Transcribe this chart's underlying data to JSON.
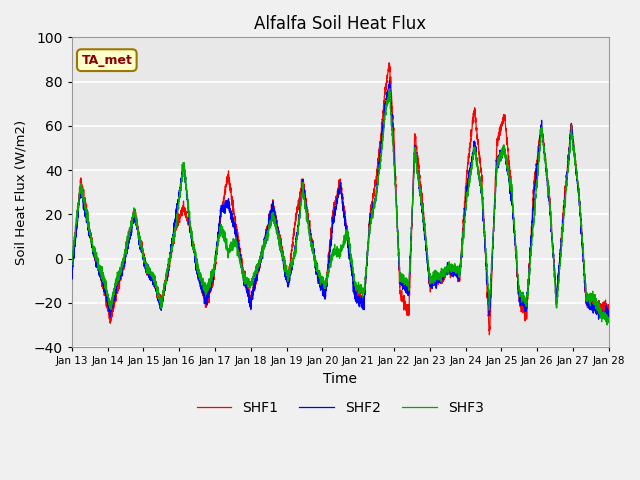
{
  "title": "Alfalfa Soil Heat Flux",
  "xlabel": "Time",
  "ylabel": "Soil Heat Flux (W/m2)",
  "ylim": [
    -40,
    100
  ],
  "xlim": [
    0,
    360
  ],
  "background_color": "#f0f0f0",
  "plot_bg_color": "#e8e8e8",
  "grid_color": "white",
  "annotation_text": "TA_met",
  "annotation_color": "#8B0000",
  "annotation_bg": "#ffffcc",
  "legend_labels": [
    "SHF1",
    "SHF2",
    "SHF3"
  ],
  "legend_colors": [
    "#ff0000",
    "#0000ff",
    "#00aa00"
  ],
  "tick_labels": [
    "Jan 13",
    "Jan 14",
    "Jan 15",
    "Jan 16",
    "Jan 17",
    "Jan 18",
    "Jan 19",
    "Jan 20",
    "Jan 21",
    "Jan 22",
    "Jan 23",
    "Jan 24",
    "Jan 25",
    "Jan 26",
    "Jan 27",
    "Jan 28"
  ],
  "tick_positions": [
    0,
    24,
    48,
    72,
    96,
    120,
    144,
    168,
    192,
    216,
    240,
    264,
    288,
    312,
    336,
    360
  ],
  "shf1_t": [
    0,
    6,
    10,
    14,
    18,
    22,
    26,
    30,
    34,
    38,
    42,
    46,
    50,
    55,
    60,
    65,
    70,
    75,
    80,
    85,
    90,
    95,
    100,
    105,
    110,
    115,
    120,
    125,
    130,
    135,
    140,
    145,
    150,
    155,
    160,
    165,
    170,
    175,
    180,
    185,
    190,
    196,
    200,
    204,
    208,
    210,
    213,
    216,
    220,
    226,
    230,
    236,
    240,
    244,
    248,
    252,
    256,
    260,
    265,
    270,
    275,
    280,
    285,
    290,
    295,
    300,
    305,
    310,
    315,
    320,
    325,
    330,
    335,
    340,
    345,
    350,
    355,
    360
  ],
  "shf1_v": [
    -5,
    35,
    22,
    5,
    -5,
    -15,
    -28,
    -15,
    -5,
    10,
    22,
    8,
    -5,
    -10,
    -20,
    -5,
    15,
    23,
    12,
    -8,
    -20,
    -10,
    20,
    38,
    15,
    -5,
    -20,
    -5,
    10,
    24,
    8,
    -10,
    18,
    35,
    12,
    -8,
    -15,
    20,
    35,
    10,
    -15,
    -20,
    20,
    35,
    60,
    75,
    88,
    55,
    -15,
    -25,
    57,
    20,
    -12,
    -8,
    -10,
    -5,
    -5,
    -8,
    40,
    68,
    35,
    -35,
    52,
    65,
    30,
    -20,
    -25,
    35,
    60,
    30,
    -20,
    25,
    60,
    30,
    -20,
    -20,
    -22,
    -22
  ],
  "shf2_t": [
    0,
    6,
    10,
    14,
    18,
    22,
    26,
    30,
    34,
    38,
    42,
    46,
    50,
    55,
    60,
    65,
    70,
    75,
    80,
    85,
    90,
    95,
    100,
    105,
    110,
    115,
    120,
    125,
    130,
    135,
    140,
    145,
    150,
    155,
    160,
    165,
    170,
    175,
    180,
    185,
    190,
    196,
    200,
    204,
    208,
    210,
    213,
    216,
    220,
    226,
    230,
    236,
    240,
    244,
    248,
    252,
    256,
    260,
    265,
    270,
    275,
    280,
    285,
    290,
    295,
    300,
    305,
    310,
    315,
    320,
    325,
    330,
    335,
    340,
    345,
    350,
    355,
    360
  ],
  "shf2_v": [
    -8,
    32,
    18,
    5,
    -5,
    -12,
    -25,
    -12,
    -5,
    8,
    20,
    6,
    -5,
    -10,
    -22,
    -3,
    20,
    43,
    10,
    -8,
    -20,
    -8,
    22,
    25,
    12,
    -8,
    -20,
    -5,
    10,
    24,
    5,
    -12,
    5,
    33,
    10,
    -8,
    -18,
    16,
    33,
    8,
    -18,
    -20,
    18,
    28,
    55,
    68,
    80,
    48,
    -10,
    -15,
    50,
    15,
    -12,
    -10,
    -8,
    -5,
    -5,
    -8,
    32,
    52,
    28,
    -25,
    43,
    50,
    27,
    -18,
    -22,
    30,
    60,
    27,
    -18,
    22,
    60,
    28,
    -20,
    -22,
    -25,
    -25
  ],
  "shf3_t": [
    0,
    6,
    10,
    14,
    18,
    22,
    26,
    30,
    34,
    38,
    42,
    46,
    50,
    55,
    60,
    65,
    70,
    75,
    80,
    85,
    90,
    95,
    100,
    105,
    110,
    115,
    120,
    125,
    130,
    135,
    140,
    145,
    150,
    155,
    160,
    165,
    170,
    175,
    180,
    185,
    190,
    196,
    200,
    204,
    208,
    210,
    213,
    216,
    220,
    226,
    230,
    236,
    240,
    244,
    248,
    252,
    256,
    260,
    265,
    270,
    275,
    280,
    285,
    290,
    295,
    300,
    305,
    310,
    315,
    320,
    325,
    330,
    335,
    340,
    345,
    350,
    355,
    360
  ],
  "shf3_v": [
    -2,
    33,
    20,
    6,
    -3,
    -10,
    -22,
    -10,
    -3,
    9,
    22,
    7,
    -4,
    -8,
    -21,
    -2,
    15,
    43,
    12,
    -6,
    -15,
    -6,
    15,
    3,
    8,
    -8,
    -12,
    -3,
    8,
    20,
    5,
    -8,
    3,
    32,
    8,
    -6,
    -12,
    3,
    3,
    12,
    -12,
    -15,
    15,
    28,
    50,
    65,
    75,
    45,
    -8,
    -12,
    48,
    18,
    -10,
    -8,
    -7,
    -4,
    -4,
    -7,
    28,
    50,
    30,
    -22,
    42,
    50,
    30,
    -15,
    -20,
    20,
    59,
    30,
    -22,
    20,
    58,
    30,
    -18,
    -18,
    -25,
    -28
  ]
}
